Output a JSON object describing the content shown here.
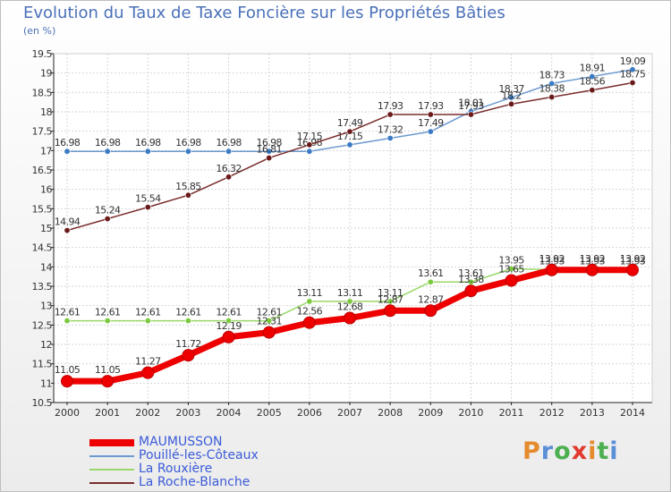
{
  "title": "Evolution du Taux de Taxe Foncière sur les Propriétés Bâties",
  "unit": "(en %)",
  "logo": {
    "text": "Proxiti",
    "letters": [
      "P",
      "r",
      "o",
      "x",
      "i",
      "t",
      "i"
    ],
    "colors": [
      "#e68a2e",
      "#5b8fd6",
      "#4caf50",
      "#e03a2f",
      "#e68a2e",
      "#4caf50",
      "#5b8fd6"
    ]
  },
  "chart_data": {
    "type": "line",
    "title": "Evolution du Taux de Taxe Foncière sur les Propriétés Bâties",
    "ylabel": "(en %)",
    "ylim": [
      10.5,
      19.5
    ],
    "grid": true,
    "x": [
      "2000",
      "2001",
      "2002",
      "2003",
      "2004",
      "2005",
      "2006",
      "2007",
      "2008",
      "2009",
      "2010",
      "2011",
      "2012",
      "2013",
      "2014"
    ],
    "yticks": [
      "10.5",
      "11",
      "11.5",
      "12",
      "12.5",
      "13",
      "13.5",
      "14",
      "14.5",
      "15",
      "15.5",
      "16",
      "16.5",
      "17",
      "17.5",
      "18",
      "18.5",
      "19",
      "19.5"
    ],
    "series": [
      {
        "name": "Pouillé-les-Côteaux",
        "color": "#6d9ad0",
        "marker": "#3a7bc4",
        "values": [
          16.98,
          16.98,
          16.98,
          16.98,
          16.98,
          16.98,
          16.98,
          17.15,
          17.32,
          17.49,
          18.01,
          18.37,
          18.73,
          18.91,
          19.09
        ]
      },
      {
        "name": "La Roche-Blanche",
        "color": "#7a2c2c",
        "marker": "#6b1a1a",
        "values": [
          14.94,
          15.24,
          15.54,
          15.85,
          16.32,
          16.81,
          17.15,
          17.49,
          17.93,
          17.93,
          17.93,
          18.2,
          18.38,
          18.56,
          18.75
        ]
      },
      {
        "name": "La Rouxière",
        "color": "#9ad86a",
        "marker": "#7cc83f",
        "values": [
          12.61,
          12.61,
          12.61,
          12.61,
          12.61,
          12.61,
          13.11,
          13.11,
          13.11,
          13.61,
          13.61,
          13.95,
          13.93,
          13.93,
          13.93
        ]
      },
      {
        "name": "MAUMUSSON",
        "color": "#ee0000",
        "marker": "#cc0000",
        "values": [
          11.05,
          11.05,
          11.27,
          11.72,
          12.19,
          12.31,
          12.56,
          12.68,
          12.87,
          12.87,
          13.38,
          13.65,
          13.92,
          13.92,
          13.92
        ]
      }
    ],
    "legend": [
      "MAUMUSSON",
      "Pouillé-les-Côteaux",
      "La Rouxière",
      "La Roche-Blanche"
    ],
    "legend_position": "bottom-left"
  }
}
